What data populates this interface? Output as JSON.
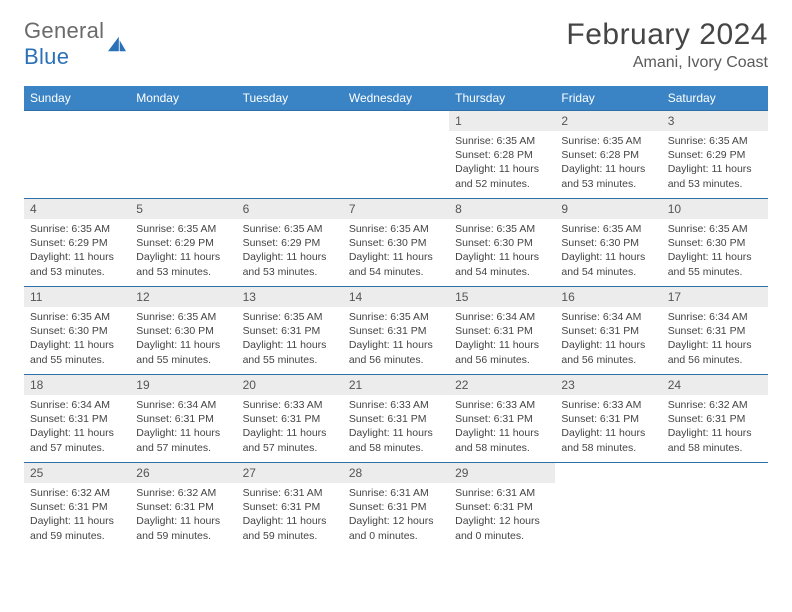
{
  "logo": {
    "general": "General",
    "blue": "Blue"
  },
  "title": "February 2024",
  "subtitle": "Amani, Ivory Coast",
  "colors": {
    "header_bg": "#3a84c5",
    "header_text": "#ffffff",
    "row_divider": "#2f6fa8",
    "daynum_bg": "#ececec",
    "logo_blue": "#2a71b8",
    "logo_gray": "#6a6a6a"
  },
  "weekdays": [
    "Sunday",
    "Monday",
    "Tuesday",
    "Wednesday",
    "Thursday",
    "Friday",
    "Saturday"
  ],
  "weeks": [
    [
      null,
      null,
      null,
      null,
      {
        "n": "1",
        "sr": "6:35 AM",
        "ss": "6:28 PM",
        "dl": "11 hours and 52 minutes."
      },
      {
        "n": "2",
        "sr": "6:35 AM",
        "ss": "6:28 PM",
        "dl": "11 hours and 53 minutes."
      },
      {
        "n": "3",
        "sr": "6:35 AM",
        "ss": "6:29 PM",
        "dl": "11 hours and 53 minutes."
      }
    ],
    [
      {
        "n": "4",
        "sr": "6:35 AM",
        "ss": "6:29 PM",
        "dl": "11 hours and 53 minutes."
      },
      {
        "n": "5",
        "sr": "6:35 AM",
        "ss": "6:29 PM",
        "dl": "11 hours and 53 minutes."
      },
      {
        "n": "6",
        "sr": "6:35 AM",
        "ss": "6:29 PM",
        "dl": "11 hours and 53 minutes."
      },
      {
        "n": "7",
        "sr": "6:35 AM",
        "ss": "6:30 PM",
        "dl": "11 hours and 54 minutes."
      },
      {
        "n": "8",
        "sr": "6:35 AM",
        "ss": "6:30 PM",
        "dl": "11 hours and 54 minutes."
      },
      {
        "n": "9",
        "sr": "6:35 AM",
        "ss": "6:30 PM",
        "dl": "11 hours and 54 minutes."
      },
      {
        "n": "10",
        "sr": "6:35 AM",
        "ss": "6:30 PM",
        "dl": "11 hours and 55 minutes."
      }
    ],
    [
      {
        "n": "11",
        "sr": "6:35 AM",
        "ss": "6:30 PM",
        "dl": "11 hours and 55 minutes."
      },
      {
        "n": "12",
        "sr": "6:35 AM",
        "ss": "6:30 PM",
        "dl": "11 hours and 55 minutes."
      },
      {
        "n": "13",
        "sr": "6:35 AM",
        "ss": "6:31 PM",
        "dl": "11 hours and 55 minutes."
      },
      {
        "n": "14",
        "sr": "6:35 AM",
        "ss": "6:31 PM",
        "dl": "11 hours and 56 minutes."
      },
      {
        "n": "15",
        "sr": "6:34 AM",
        "ss": "6:31 PM",
        "dl": "11 hours and 56 minutes."
      },
      {
        "n": "16",
        "sr": "6:34 AM",
        "ss": "6:31 PM",
        "dl": "11 hours and 56 minutes."
      },
      {
        "n": "17",
        "sr": "6:34 AM",
        "ss": "6:31 PM",
        "dl": "11 hours and 56 minutes."
      }
    ],
    [
      {
        "n": "18",
        "sr": "6:34 AM",
        "ss": "6:31 PM",
        "dl": "11 hours and 57 minutes."
      },
      {
        "n": "19",
        "sr": "6:34 AM",
        "ss": "6:31 PM",
        "dl": "11 hours and 57 minutes."
      },
      {
        "n": "20",
        "sr": "6:33 AM",
        "ss": "6:31 PM",
        "dl": "11 hours and 57 minutes."
      },
      {
        "n": "21",
        "sr": "6:33 AM",
        "ss": "6:31 PM",
        "dl": "11 hours and 58 minutes."
      },
      {
        "n": "22",
        "sr": "6:33 AM",
        "ss": "6:31 PM",
        "dl": "11 hours and 58 minutes."
      },
      {
        "n": "23",
        "sr": "6:33 AM",
        "ss": "6:31 PM",
        "dl": "11 hours and 58 minutes."
      },
      {
        "n": "24",
        "sr": "6:32 AM",
        "ss": "6:31 PM",
        "dl": "11 hours and 58 minutes."
      }
    ],
    [
      {
        "n": "25",
        "sr": "6:32 AM",
        "ss": "6:31 PM",
        "dl": "11 hours and 59 minutes."
      },
      {
        "n": "26",
        "sr": "6:32 AM",
        "ss": "6:31 PM",
        "dl": "11 hours and 59 minutes."
      },
      {
        "n": "27",
        "sr": "6:31 AM",
        "ss": "6:31 PM",
        "dl": "11 hours and 59 minutes."
      },
      {
        "n": "28",
        "sr": "6:31 AM",
        "ss": "6:31 PM",
        "dl": "12 hours and 0 minutes."
      },
      {
        "n": "29",
        "sr": "6:31 AM",
        "ss": "6:31 PM",
        "dl": "12 hours and 0 minutes."
      },
      null,
      null
    ]
  ],
  "labels": {
    "sunrise": "Sunrise:",
    "sunset": "Sunset:",
    "daylight": "Daylight:"
  }
}
